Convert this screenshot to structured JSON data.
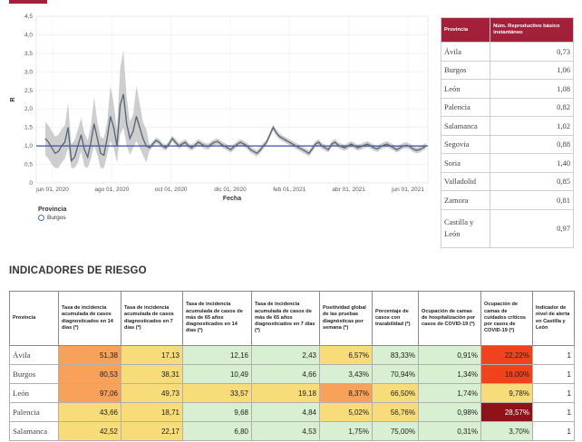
{
  "chart_data": {
    "type": "line",
    "xlabel": "Fecha",
    "ylabel": "R",
    "ylim": [
      0,
      4.5
    ],
    "yticks": [
      "0",
      "0,5",
      "1,0",
      "1,5",
      "2,0",
      "2,5",
      "3,0",
      "3,5",
      "4,0",
      "4,5"
    ],
    "xticks": [
      "jun 01, 2020",
      "ago 01, 2020",
      "oct 01, 2020",
      "dic 01, 2020",
      "feb 01, 2021",
      "abr 01, 2021",
      "jun 01, 2021"
    ],
    "reference_line": 1.0,
    "legend_title": "Provincia",
    "series": [
      {
        "name": "Burgos",
        "color": "#5a6a7a",
        "band_color": "#bdbdbd",
        "values": [
          1.2,
          1.1,
          0.95,
          0.8,
          0.85,
          1.0,
          1.1,
          1.5,
          0.6,
          0.7,
          1.0,
          1.3,
          0.9,
          0.7,
          1.1,
          1.6,
          1.2,
          0.8,
          0.75,
          1.2,
          1.8,
          1.5,
          1.0,
          2.1,
          2.4,
          1.6,
          1.2,
          1.4,
          1.8,
          1.5,
          1.2,
          1.0,
          0.95,
          1.05,
          1.15,
          1.1,
          1.0,
          0.95,
          1.05,
          1.2,
          1.1,
          1.0,
          1.05,
          1.1,
          1.0,
          0.95,
          1.02,
          1.1,
          1.05,
          1.0,
          0.98,
          1.05,
          1.1,
          1.12,
          1.05,
          1.0,
          0.95,
          0.9,
          0.98,
          1.05,
          1.1,
          1.05,
          1.0,
          0.9,
          0.85,
          0.8,
          0.88,
          1.0,
          1.1,
          1.3,
          1.5,
          1.35,
          1.25,
          1.2,
          1.15,
          1.1,
          1.05,
          1.0,
          0.95,
          0.9,
          0.85,
          0.8,
          0.92,
          1.05,
          1.1,
          1.0,
          0.95,
          0.9,
          1.05,
          1.1,
          1.02,
          0.98,
          0.95,
          1.0,
          1.05,
          1.0,
          0.95,
          0.98,
          1.02,
          1.05,
          1.0,
          0.95,
          0.92,
          0.98,
          1.02,
          1.05,
          1.0,
          0.95,
          0.9,
          0.95,
          1.0,
          1.02,
          0.98,
          0.92,
          0.88,
          0.9,
          0.95,
          1.0
        ]
      }
    ]
  },
  "legend": {
    "title": "Provincia",
    "item": "Burgos"
  },
  "repro_table": {
    "headers": [
      "Provincia",
      "Núm. Reproductivo básico instantáneo"
    ],
    "rows": [
      {
        "name": "Ávila",
        "value": "0,73"
      },
      {
        "name": "Burgos",
        "value": "1,06"
      },
      {
        "name": "León",
        "value": "1,08"
      },
      {
        "name": "Palencia",
        "value": "0,82"
      },
      {
        "name": "Salamanca",
        "value": "1,02"
      },
      {
        "name": "Segovia",
        "value": "0,88"
      },
      {
        "name": "Soria",
        "value": "1,40"
      },
      {
        "name": "Valladolid",
        "value": "0,85"
      },
      {
        "name": "Zamora",
        "value": "0,81"
      },
      {
        "name": "Castilla y León",
        "value": "0,97"
      }
    ]
  },
  "section_title": "INDICADORES DE RIESGO",
  "risk_table": {
    "headers": [
      "Provincia",
      "Tasa de incidencia acumulada de casos diagnosticados en 14 días (*)",
      "Tasa de incidencia acumulada de casos diagnosticados en 7 días (*)",
      "Tasa de incidencia acumulada de casos de más de 65 años diagnosticados en 14 días (*)",
      "Tasa de incidencia acumulada de casos de más de 65 años diagnosticados en 7 días (*)",
      "Positividad global de las pruebas diagnósticas por semana (*)",
      "Porcentaje de casos con trazabilidad (*)",
      "Ocupación de camas de hospitalización por casos de COVID-19 (*)",
      "Ocupación de camas de cuidados críticos por casos de COVID-19 (*)",
      "Indicador de nivel de alerta en Castilla y León"
    ],
    "rows": [
      {
        "name": "Ávila",
        "cells": [
          "51,38",
          "17,13",
          "12,16",
          "2,43",
          "6,57%",
          "83,33%",
          "0,91%",
          "22,22%"
        ],
        "level": "1"
      },
      {
        "name": "Burgos",
        "cells": [
          "80,53",
          "38,31",
          "10,49",
          "4,66",
          "3,43%",
          "70,94%",
          "1,34%",
          "16,00%"
        ],
        "level": "1"
      },
      {
        "name": "León",
        "cells": [
          "97,06",
          "49,73",
          "33,57",
          "19,18",
          "8,37%",
          "66,50%",
          "1,74%",
          "9,78%"
        ],
        "level": "1"
      },
      {
        "name": "Palencia",
        "cells": [
          "43,66",
          "18,71",
          "9,68",
          "4,84",
          "5,02%",
          "56,76%",
          "0,98%",
          "28,57%"
        ],
        "level": "1"
      },
      {
        "name": "Salamanca",
        "cells": [
          "42,52",
          "22,17",
          "6,80",
          "4,53",
          "1,75%",
          "75,00%",
          "0,31%",
          "3,70%"
        ],
        "level": "1"
      }
    ],
    "cell_colors": [
      [
        "#f7a15a",
        "#f8dc7a",
        "#d9efd2",
        "#d9efd2",
        "#f8dc7a",
        "#d9efd2",
        "#d9efd2",
        "#f0421c"
      ],
      [
        "#f7a15a",
        "#f8dc7a",
        "#d9efd2",
        "#d9efd2",
        "#d9efd2",
        "#d9efd2",
        "#d9efd2",
        "#f0421c"
      ],
      [
        "#f7a15a",
        "#f8dc7a",
        "#f8dc7a",
        "#f8dc7a",
        "#f7a15a",
        "#f8dc7a",
        "#d9efd2",
        "#f8dc7a"
      ],
      [
        "#f8dc7a",
        "#f8dc7a",
        "#d9efd2",
        "#d9efd2",
        "#f8dc7a",
        "#f8dc7a",
        "#d9efd2",
        "#8e1218"
      ],
      [
        "#f8dc7a",
        "#f8dc7a",
        "#d9efd2",
        "#d9efd2",
        "#d9efd2",
        "#d9efd2",
        "#d9efd2",
        "#d9efd2"
      ]
    ]
  },
  "colors": {
    "accent": "#a3203a",
    "reference_line": "#3a4fa8"
  }
}
